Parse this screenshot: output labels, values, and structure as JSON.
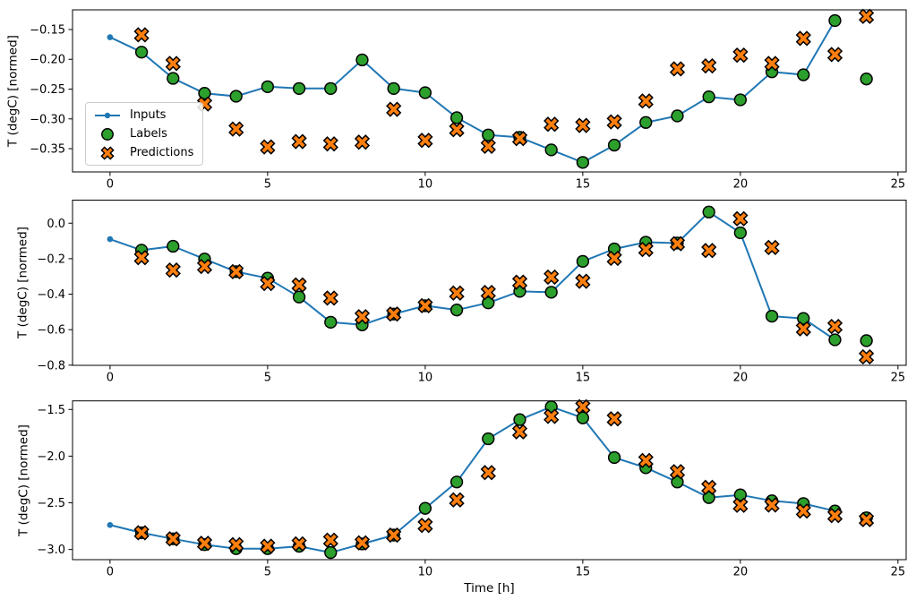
{
  "figure": {
    "xlabel": "Time [h]",
    "ylabel": "T (degC) [normed]",
    "legend": {
      "position": "upper left of first subplot",
      "items": [
        {
          "label": "Inputs",
          "marker": "line-with-dot",
          "color": "#1f77b4"
        },
        {
          "label": "Labels",
          "marker": "circle",
          "color": "#2ca02c"
        },
        {
          "label": "Predictions",
          "marker": "X",
          "color": "#ff7f0e"
        }
      ]
    },
    "colors": {
      "inputs": "#1f77b4",
      "labels": "#2ca02c",
      "predictions": "#ff7f0e",
      "marker_edge": "#000000",
      "axis": "#000000",
      "legend_border": "#cccccc",
      "background": "#ffffff"
    }
  },
  "chart_data": [
    {
      "type": "line",
      "subplot": "top",
      "title": "",
      "xlabel": "",
      "ylabel": "T (degC) [normed]",
      "grid": false,
      "xlim": [
        -1.19,
        25.26
      ],
      "ylim": [
        -0.389,
        -0.117
      ],
      "x_ticks": {
        "values": [
          0,
          5,
          10,
          15,
          20,
          25
        ],
        "labels": [
          "0",
          "5",
          "10",
          "15",
          "20",
          "25"
        ]
      },
      "y_ticks": {
        "values": [
          -0.15,
          -0.2,
          -0.25,
          -0.3,
          -0.35
        ],
        "labels": [
          "−0.15",
          "−0.20",
          "−0.25",
          "−0.30",
          "−0.35"
        ]
      },
      "series": [
        {
          "name": "Inputs",
          "kind": "line",
          "marker": "dot",
          "x": [
            0,
            1,
            2,
            3,
            4,
            5,
            6,
            7,
            8,
            9,
            10,
            11,
            12,
            13,
            14,
            15,
            16,
            17,
            18,
            19,
            20,
            21,
            22,
            23
          ],
          "y": [
            -0.163,
            -0.188,
            -0.232,
            -0.257,
            -0.262,
            -0.246,
            -0.249,
            -0.249,
            -0.201,
            -0.249,
            -0.256,
            -0.298,
            -0.327,
            -0.331,
            -0.352,
            -0.373,
            -0.344,
            -0.306,
            -0.295,
            -0.263,
            -0.268,
            -0.221,
            -0.226,
            -0.135
          ]
        },
        {
          "name": "Labels",
          "kind": "scatter",
          "marker": "circle",
          "x": [
            1,
            2,
            3,
            4,
            5,
            6,
            7,
            8,
            9,
            10,
            11,
            12,
            13,
            14,
            15,
            16,
            17,
            18,
            19,
            20,
            21,
            22,
            23,
            24
          ],
          "y": [
            -0.188,
            -0.232,
            -0.257,
            -0.262,
            -0.246,
            -0.249,
            -0.249,
            -0.201,
            -0.249,
            -0.256,
            -0.298,
            -0.327,
            -0.331,
            -0.352,
            -0.373,
            -0.344,
            -0.306,
            -0.295,
            -0.263,
            -0.268,
            -0.221,
            -0.226,
            -0.135,
            -0.233
          ]
        },
        {
          "name": "Predictions",
          "kind": "scatter",
          "marker": "X",
          "x": [
            1,
            2,
            3,
            4,
            5,
            6,
            7,
            8,
            9,
            10,
            11,
            12,
            13,
            14,
            15,
            16,
            17,
            18,
            19,
            20,
            21,
            22,
            23,
            24
          ],
          "y": [
            -0.159,
            -0.207,
            -0.275,
            -0.317,
            -0.347,
            -0.338,
            -0.342,
            -0.339,
            -0.284,
            -0.336,
            -0.318,
            -0.346,
            -0.333,
            -0.309,
            -0.311,
            -0.305,
            -0.27,
            -0.216,
            -0.211,
            -0.193,
            -0.207,
            -0.165,
            -0.192,
            -0.128
          ]
        }
      ]
    },
    {
      "type": "line",
      "subplot": "middle",
      "title": "",
      "xlabel": "",
      "ylabel": "T (degC) [normed]",
      "grid": false,
      "xlim": [
        -1.19,
        25.26
      ],
      "ylim": [
        -0.801,
        0.13
      ],
      "x_ticks": {
        "values": [
          0,
          5,
          10,
          15,
          20,
          25
        ],
        "labels": [
          "0",
          "5",
          "10",
          "15",
          "20",
          "25"
        ]
      },
      "y_ticks": {
        "values": [
          0.0,
          -0.2,
          -0.4,
          -0.6,
          -0.8
        ],
        "labels": [
          "0.0",
          "−0.2",
          "−0.4",
          "−0.6",
          "−0.8"
        ]
      },
      "series": [
        {
          "name": "Inputs",
          "kind": "line",
          "marker": "dot",
          "x": [
            0,
            1,
            2,
            3,
            4,
            5,
            6,
            7,
            8,
            9,
            10,
            11,
            12,
            13,
            14,
            15,
            16,
            17,
            18,
            19,
            20,
            21,
            22,
            23
          ],
          "y": [
            -0.09,
            -0.152,
            -0.13,
            -0.202,
            -0.273,
            -0.31,
            -0.416,
            -0.558,
            -0.573,
            -0.512,
            -0.465,
            -0.489,
            -0.449,
            -0.384,
            -0.389,
            -0.215,
            -0.145,
            -0.107,
            -0.112,
            0.063,
            -0.054,
            -0.524,
            -0.537,
            -0.657
          ]
        },
        {
          "name": "Labels",
          "kind": "scatter",
          "marker": "circle",
          "x": [
            1,
            2,
            3,
            4,
            5,
            6,
            7,
            8,
            9,
            10,
            11,
            12,
            13,
            14,
            15,
            16,
            17,
            18,
            19,
            20,
            21,
            22,
            23,
            24
          ],
          "y": [
            -0.152,
            -0.13,
            -0.202,
            -0.273,
            -0.31,
            -0.416,
            -0.558,
            -0.573,
            -0.512,
            -0.465,
            -0.489,
            -0.449,
            -0.384,
            -0.389,
            -0.215,
            -0.145,
            -0.107,
            -0.112,
            0.063,
            -0.054,
            -0.524,
            -0.537,
            -0.657,
            -0.662
          ]
        },
        {
          "name": "Predictions",
          "kind": "scatter",
          "marker": "X",
          "x": [
            1,
            2,
            3,
            4,
            5,
            6,
            7,
            8,
            9,
            10,
            11,
            12,
            13,
            14,
            15,
            16,
            17,
            18,
            19,
            20,
            21,
            22,
            23,
            24
          ],
          "y": [
            -0.194,
            -0.264,
            -0.244,
            -0.273,
            -0.34,
            -0.348,
            -0.422,
            -0.527,
            -0.512,
            -0.465,
            -0.394,
            -0.39,
            -0.332,
            -0.304,
            -0.327,
            -0.198,
            -0.148,
            -0.115,
            -0.154,
            0.025,
            -0.137,
            -0.595,
            -0.582,
            -0.753
          ]
        }
      ]
    },
    {
      "type": "line",
      "subplot": "bottom",
      "title": "",
      "xlabel": "Time [h]",
      "ylabel": "T (degC) [normed]",
      "grid": false,
      "xlim": [
        -1.19,
        25.26
      ],
      "ylim": [
        -3.109,
        -1.408
      ],
      "x_ticks": {
        "values": [
          0,
          5,
          10,
          15,
          20,
          25
        ],
        "labels": [
          "0",
          "5",
          "10",
          "15",
          "20",
          "25"
        ]
      },
      "y_ticks": {
        "values": [
          -1.5,
          -2.0,
          -2.5,
          -3.0
        ],
        "labels": [
          "−1.5",
          "−2.0",
          "−2.5",
          "−3.0"
        ]
      },
      "series": [
        {
          "name": "Inputs",
          "kind": "line",
          "marker": "dot",
          "x": [
            0,
            1,
            2,
            3,
            4,
            5,
            6,
            7,
            8,
            9,
            10,
            11,
            12,
            13,
            14,
            15,
            16,
            17,
            18,
            19,
            20,
            21,
            22,
            23
          ],
          "y": [
            -2.738,
            -2.821,
            -2.886,
            -2.948,
            -2.991,
            -2.991,
            -2.966,
            -3.033,
            -2.94,
            -2.846,
            -2.559,
            -2.277,
            -1.814,
            -1.609,
            -1.471,
            -1.59,
            -2.015,
            -2.124,
            -2.277,
            -2.444,
            -2.415,
            -2.479,
            -2.508,
            -2.588
          ]
        },
        {
          "name": "Labels",
          "kind": "scatter",
          "marker": "circle",
          "x": [
            1,
            2,
            3,
            4,
            5,
            6,
            7,
            8,
            9,
            10,
            11,
            12,
            13,
            14,
            15,
            16,
            17,
            18,
            19,
            20,
            21,
            22,
            23,
            24
          ],
          "y": [
            -2.821,
            -2.886,
            -2.948,
            -2.991,
            -2.991,
            -2.966,
            -3.033,
            -2.94,
            -2.846,
            -2.559,
            -2.277,
            -1.814,
            -1.609,
            -1.471,
            -1.59,
            -2.015,
            -2.124,
            -2.277,
            -2.444,
            -2.415,
            -2.479,
            -2.508,
            -2.588,
            -2.661
          ]
        },
        {
          "name": "Predictions",
          "kind": "scatter",
          "marker": "X",
          "x": [
            1,
            2,
            3,
            4,
            5,
            6,
            7,
            8,
            9,
            10,
            11,
            12,
            13,
            14,
            15,
            16,
            17,
            18,
            19,
            20,
            21,
            22,
            23,
            24
          ],
          "y": [
            -2.821,
            -2.886,
            -2.934,
            -2.949,
            -2.965,
            -2.94,
            -2.901,
            -2.93,
            -2.846,
            -2.742,
            -2.469,
            -2.176,
            -1.74,
            -1.574,
            -1.471,
            -1.6,
            -2.047,
            -2.166,
            -2.335,
            -2.527,
            -2.524,
            -2.588,
            -2.636,
            -2.68
          ]
        }
      ]
    }
  ]
}
